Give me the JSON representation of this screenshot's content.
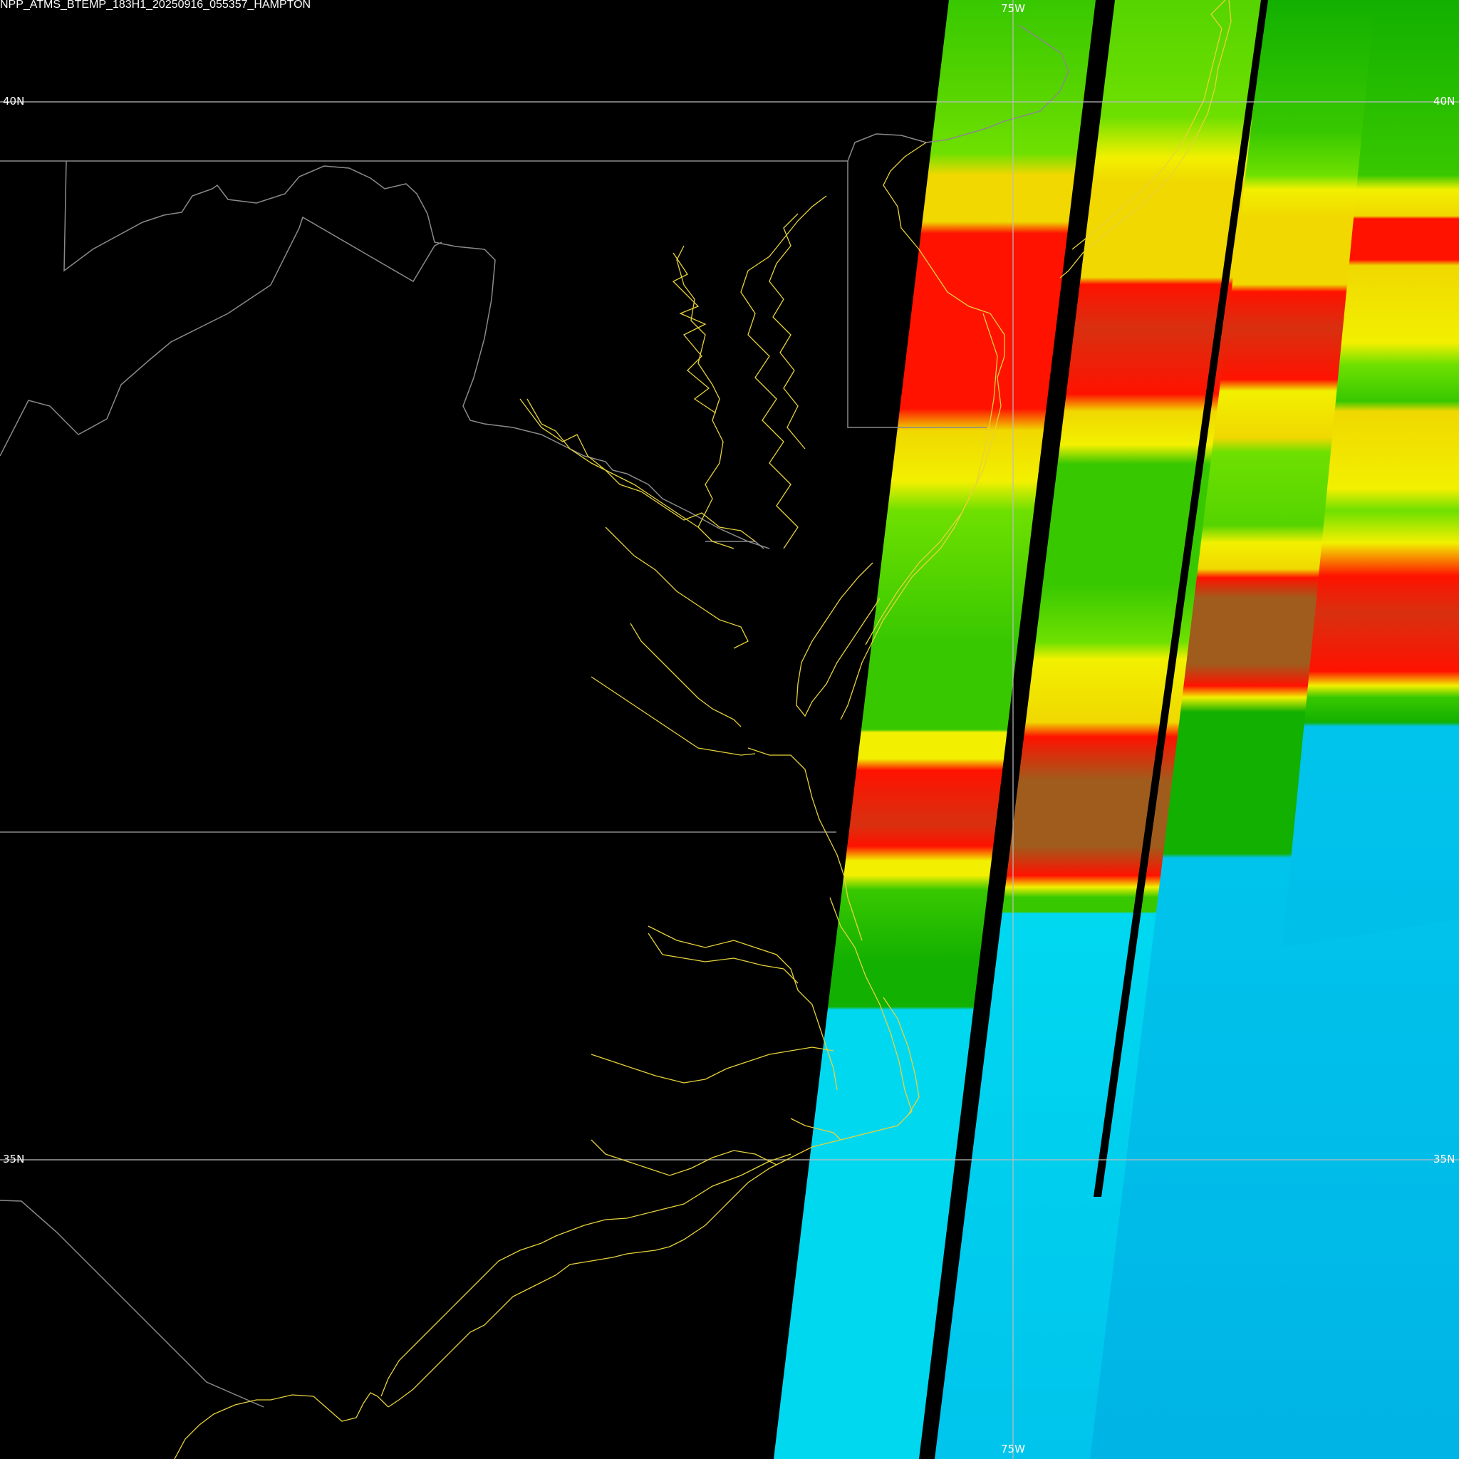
{
  "title": "NPP_ATMS_BTEMP_183H1_20250916_055357_HAMPTON",
  "grid": {
    "lat_labels": [
      "40N",
      "35N"
    ],
    "lon_labels": [
      "75W"
    ]
  },
  "colors": {
    "background": "#000000",
    "gridline": "#9a9a9a",
    "coastline": "#e6d23a",
    "border": "#8a8a8a",
    "scale": [
      "#00d8f0",
      "#00b8e8",
      "#12b000",
      "#38c800",
      "#6ee000",
      "#f2f000",
      "#f0d800",
      "#ff1200",
      "#d83010",
      "#a05c1c"
    ]
  },
  "product": {
    "satellite": "NPP",
    "instrument": "ATMS",
    "field": "BTEMP",
    "channel": "183H1",
    "region": "HAMPTON"
  }
}
